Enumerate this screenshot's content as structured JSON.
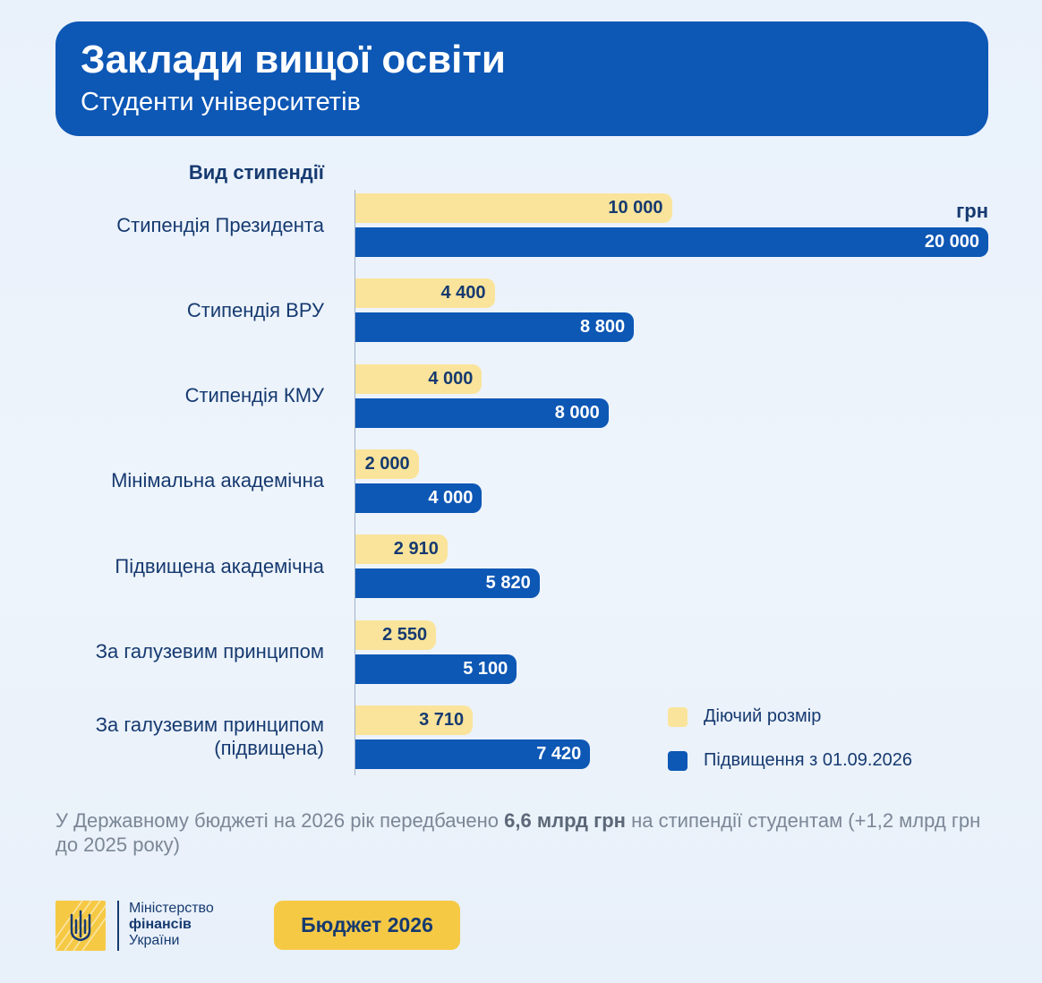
{
  "header": {
    "title": "Заклади вищої освіти",
    "subtitle": "Студенти університетів"
  },
  "chart_data": {
    "type": "bar",
    "orientation": "horizontal",
    "category_header": "Вид стипендії",
    "unit_label": "грн",
    "categories": [
      "Стипендія Президента",
      "Стипендія ВРУ",
      "Стипендія КМУ",
      "Мінімальна академічна",
      "Підвищена академічна",
      "За галузевим принципом",
      "За галузевим принципом (підвищена)"
    ],
    "category_lines": [
      [
        "Стипендія Президента"
      ],
      [
        "Стипендія ВРУ"
      ],
      [
        "Стипендія КМУ"
      ],
      [
        "Мінімальна академічна"
      ],
      [
        "Підвищена академічна"
      ],
      [
        "За галузевим принципом"
      ],
      [
        "За галузевим принципом",
        "(підвищена)"
      ]
    ],
    "series": [
      {
        "name": "Діючий розмір",
        "color": "#fae49b",
        "values": [
          10000,
          4400,
          4000,
          2000,
          2910,
          2550,
          3710
        ],
        "labels": [
          "10 000",
          "4 400",
          "4 000",
          "2 000",
          "2 910",
          "2 550",
          "3 710"
        ]
      },
      {
        "name": "Підвищення з 01.09.2026",
        "color": "#0d57b5",
        "values": [
          20000,
          8800,
          8000,
          4000,
          5820,
          5100,
          7420
        ],
        "labels": [
          "20 000",
          "8 800",
          "8 000",
          "4 000",
          "5 820",
          "5 100",
          "7 420"
        ]
      }
    ],
    "xlim": [
      0,
      20000
    ],
    "grid": false,
    "legend_position": "bottom-right"
  },
  "note": {
    "text_before": "У Державному бюджеті на 2026 рік передбачено ",
    "text_bold": "6,6 млрд грн",
    "text_after": " на стипендії студентам (+1,2 млрд грн до 2025 року)"
  },
  "footer": {
    "ministry_line1": "Міністерство",
    "ministry_line2": "фінансів",
    "ministry_line3": "України",
    "badge": "Бюджет 2026",
    "emblem_icon": "trident-icon"
  }
}
